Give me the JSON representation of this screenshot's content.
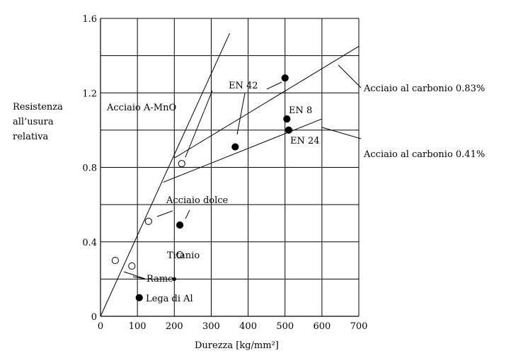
{
  "chart_data": {
    "type": "scatter",
    "xlabel": "Durezza [kg/mm²]",
    "ylabel_lines": [
      "Resistenza",
      "all’usura",
      "relativa"
    ],
    "xlim": [
      0,
      700
    ],
    "ylim": [
      0,
      1.6
    ],
    "x_ticks": [
      0,
      100,
      200,
      300,
      400,
      500,
      600,
      700
    ],
    "y_ticks": [
      "0",
      "0.4",
      "0.8",
      "1.2",
      "1.6"
    ],
    "y_tick_values": [
      0,
      0.4,
      0.8,
      1.2,
      1.6
    ],
    "grid": true,
    "lines": [
      {
        "x": [
          0,
          350
        ],
        "y": [
          0,
          1.52
        ]
      },
      {
        "name": "Acciaio al carbonio 0.83%",
        "x": [
          200,
          700
        ],
        "y": [
          0.85,
          1.45
        ]
      },
      {
        "name": "Acciaio al carbonio 0.41%",
        "x": [
          170,
          600
        ],
        "y": [
          0.72,
          1.06
        ]
      }
    ],
    "series": [
      {
        "marker": "open",
        "points": [
          {
            "name": "Acciaio A-MnO",
            "x": 220,
            "y": 0.82
          },
          {
            "name": "Acciaio dolce",
            "x": 130,
            "y": 0.51
          },
          {
            "name": "Titanio",
            "x": 215,
            "y": 0.33
          },
          {
            "name": "Rame",
            "x": 40,
            "y": 0.3
          },
          {
            "name": "Rame",
            "x": 85,
            "y": 0.27
          }
        ]
      },
      {
        "marker": "filled",
        "points": [
          {
            "name": "EN 42",
            "x": 500,
            "y": 1.28
          },
          {
            "name": "EN 42",
            "x": 365,
            "y": 0.91
          },
          {
            "name": "EN 8",
            "x": 505,
            "y": 1.06
          },
          {
            "name": "EN 24",
            "x": 510,
            "y": 1.0
          },
          {
            "name": "Acciaio dolce",
            "x": 215,
            "y": 0.49
          },
          {
            "name": "Lega di Al",
            "x": 105,
            "y": 0.1
          },
          {
            "name": "Rame",
            "x": 200,
            "y": 0.2
          }
        ]
      }
    ],
    "annotations": {
      "en42": "EN 42",
      "en8": "EN 8",
      "en24": "EN 24",
      "carbon083": "Acciaio al carbonio 0.83%",
      "carbon041": "Acciaio al carbonio 0.41%",
      "amno": "Acciaio A-MnO",
      "dolce": "Acciaio dolce",
      "titanio": "Titanio",
      "rame": "Rame",
      "lega": "Lega di Al"
    }
  }
}
